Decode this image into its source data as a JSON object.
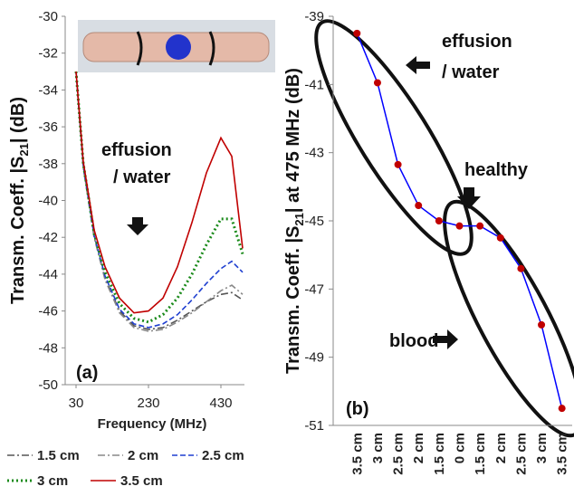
{
  "chart_data": [
    {
      "type": "line",
      "x": [
        30,
        50,
        80,
        110,
        150,
        190,
        230,
        270,
        310,
        350,
        390,
        430,
        460,
        490
      ],
      "xlim": [
        0,
        495
      ],
      "xticks": [
        30,
        230,
        430
      ],
      "ylim": [
        -50,
        -30
      ],
      "yticks": [
        -50,
        -48,
        -46,
        -44,
        -42,
        -40,
        -38,
        -36,
        -34,
        -32,
        -30
      ],
      "x_label": "Frequency (MHz)",
      "y_label": {
        "pre": "Transm. Coeff. |S",
        "sub": "21",
        "post": "| (dB)"
      },
      "panel_label": "(a)",
      "annotation": [
        "effusion",
        "/ water"
      ],
      "series": [
        {
          "name": "1.5 cm",
          "color": "#555555",
          "style": "dashdot",
          "values": [
            -33,
            -38.2,
            -42,
            -44.2,
            -46,
            -46.8,
            -47.0,
            -46.9,
            -46.5,
            -46,
            -45.5,
            -45.1,
            -45.0,
            -45.4
          ]
        },
        {
          "name": "2 cm",
          "color": "#888888",
          "style": "dashdot",
          "values": [
            -33,
            -38.2,
            -42,
            -44.3,
            -46.1,
            -46.9,
            -47.1,
            -47.0,
            -46.6,
            -46.1,
            -45.5,
            -44.9,
            -44.6,
            -45.1
          ]
        },
        {
          "name": "2.5 cm",
          "color": "#1f3fd0",
          "style": "dashed",
          "values": [
            -33,
            -38.1,
            -41.9,
            -44.1,
            -45.9,
            -46.7,
            -46.9,
            -46.7,
            -46.2,
            -45.4,
            -44.5,
            -43.7,
            -43.3,
            -43.9
          ]
        },
        {
          "name": "3 cm",
          "color": "#1a8a1a",
          "style": "dotted",
          "values": [
            -33,
            -38,
            -41.8,
            -43.9,
            -45.6,
            -46.4,
            -46.6,
            -46.2,
            -45.3,
            -44,
            -42.4,
            -41,
            -41.0,
            -42.9
          ]
        },
        {
          "name": "3.5 cm",
          "color": "#c00000",
          "style": "solid",
          "values": [
            -33,
            -37.9,
            -41.6,
            -43.6,
            -45.3,
            -46.1,
            -46.0,
            -45.3,
            -43.6,
            -41.2,
            -38.5,
            -36.6,
            -37.6,
            -42.6
          ]
        }
      ]
    },
    {
      "type": "line",
      "categories": [
        "3.5 cm",
        "3 cm",
        "2.5 cm",
        "2 cm",
        "1.5 cm",
        "0 cm",
        "1.5 cm",
        "2 cm",
        "2.5 cm",
        "3 cm",
        "3.5 cm"
      ],
      "values": [
        -39.5,
        -40.95,
        -43.35,
        -44.55,
        -45.0,
        -45.15,
        -45.15,
        -45.5,
        -46.4,
        -48.05,
        -50.5
      ],
      "color": "#0000ff",
      "marker_color": "#c00000",
      "ylim": [
        -51,
        -39
      ],
      "yticks": [
        -51,
        -49,
        -47,
        -45,
        -43,
        -41,
        -39
      ],
      "y_label": {
        "pre": "Transm. Coeff. |S",
        "sub": "21",
        "post": "| at 475 MHz (dB)"
      },
      "panel_label": "(b)",
      "annotations": {
        "effusion": [
          "effusion",
          "/ water"
        ],
        "healthy": "healthy",
        "blood": "blood"
      }
    }
  ]
}
